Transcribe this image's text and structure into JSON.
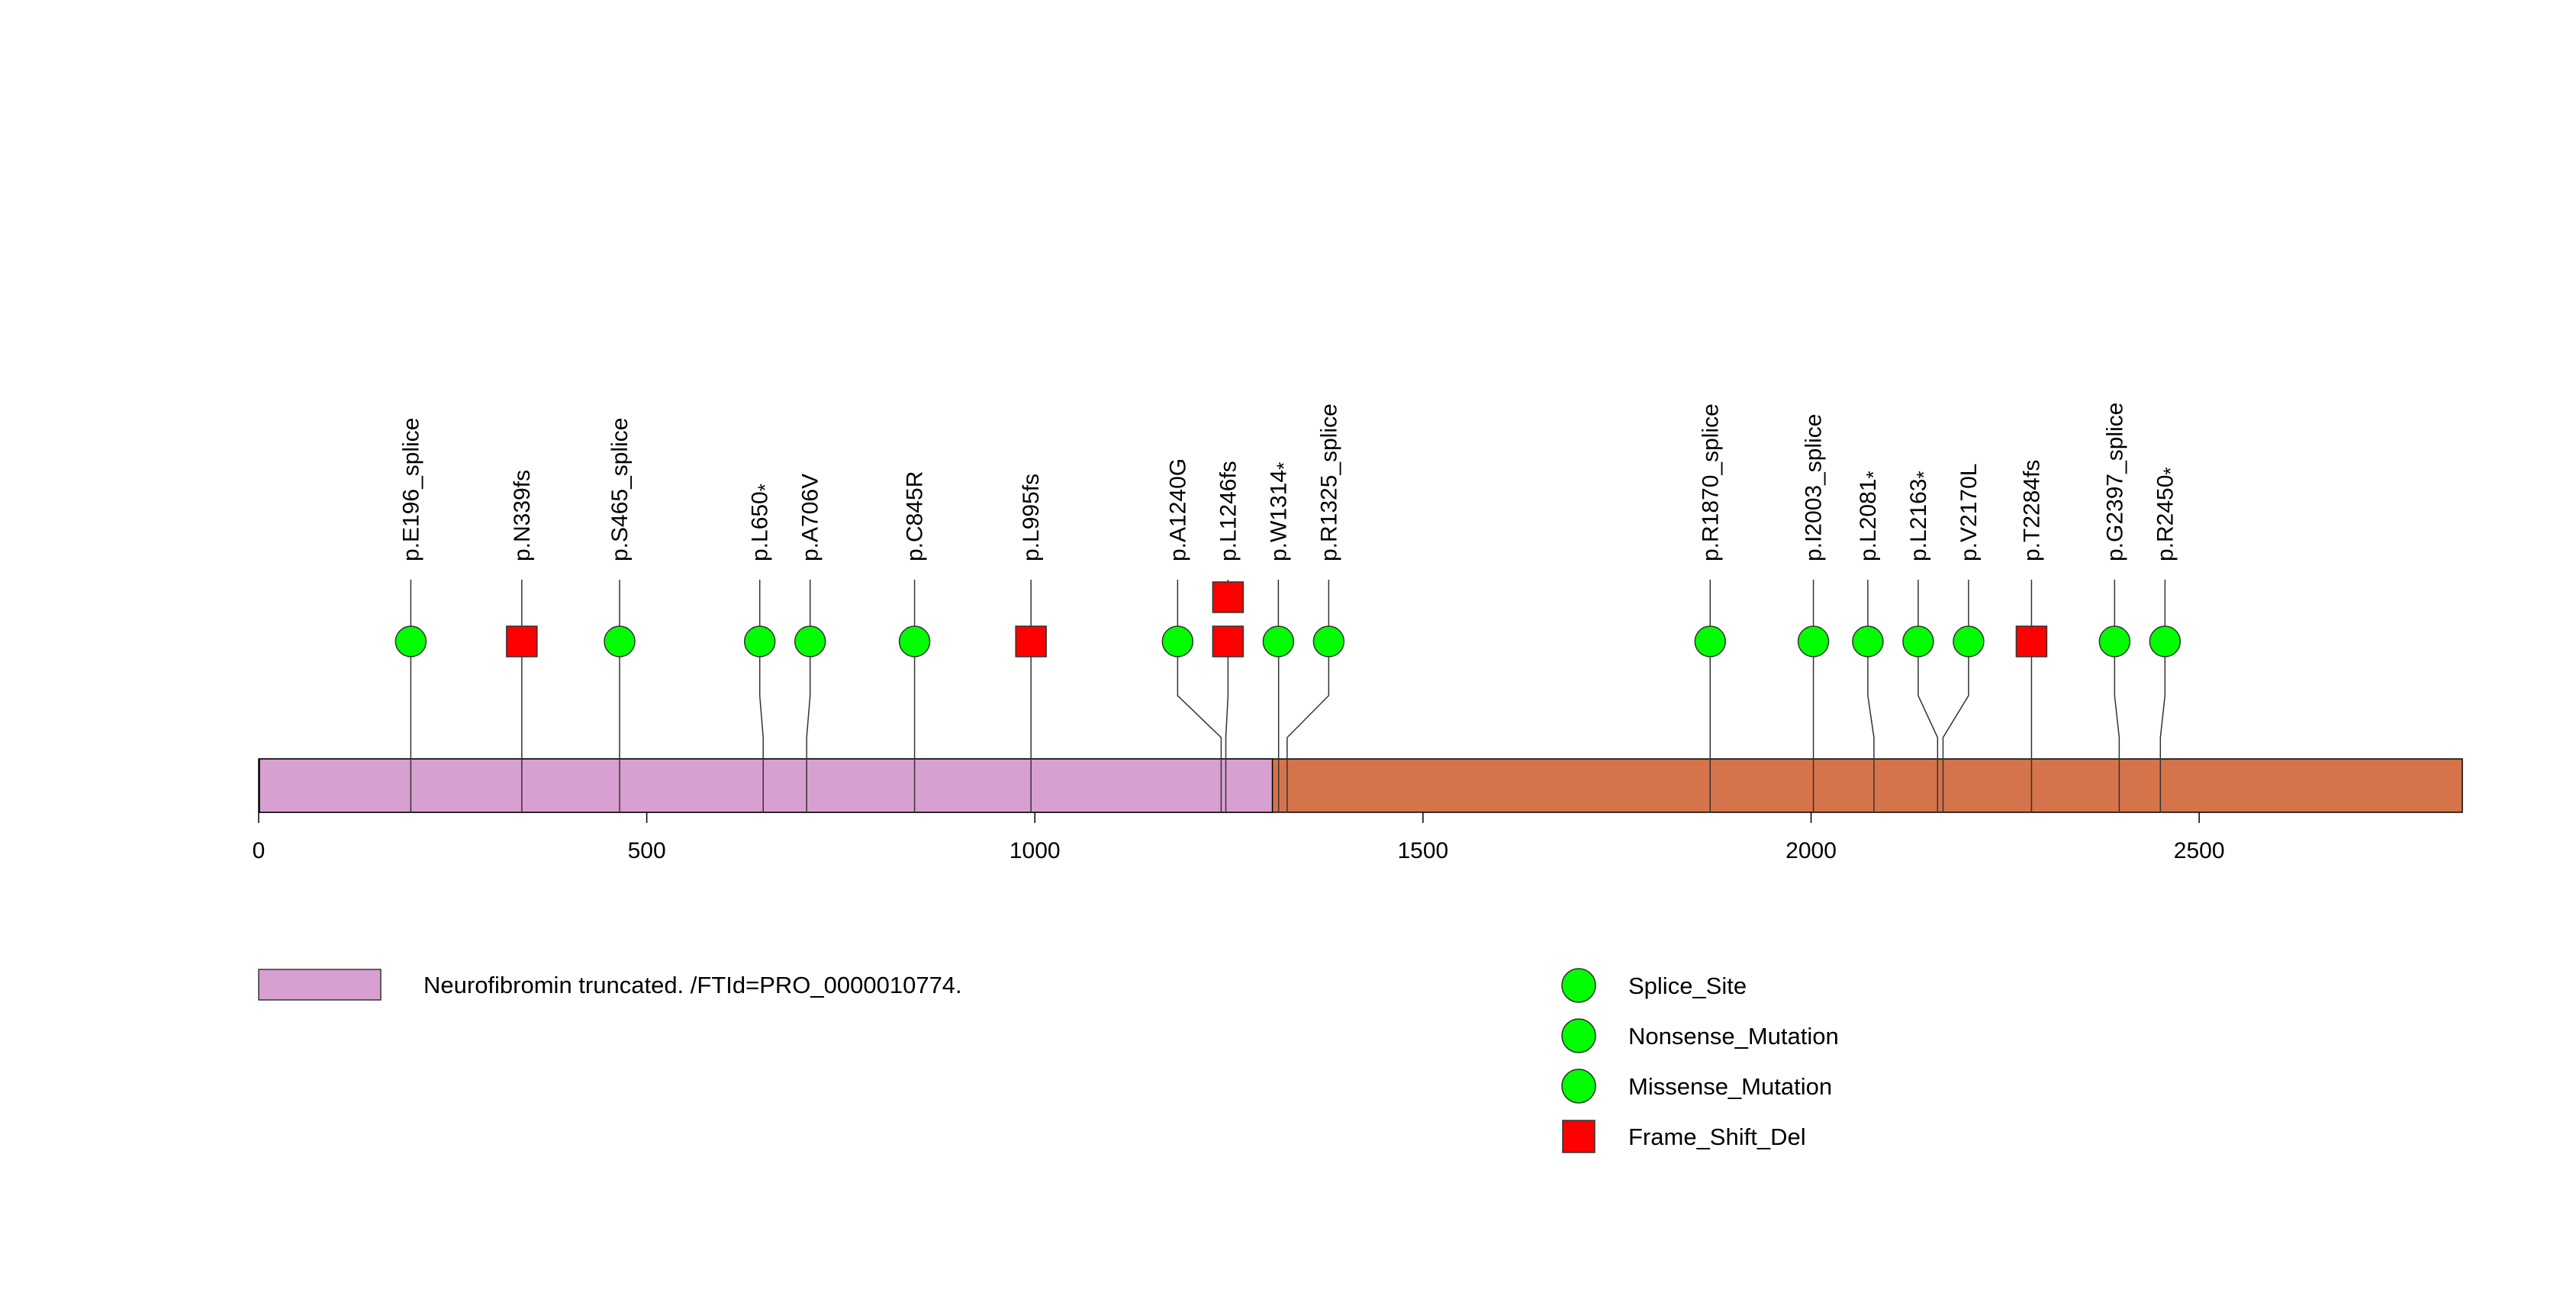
{
  "diagram": {
    "protein_length": 2839,
    "axis": {
      "min": 0,
      "max": 2839,
      "ticks": [
        0,
        500,
        1000,
        1500,
        2000,
        2500
      ],
      "tick_labels": [
        "0",
        "500",
        "1000",
        "1500",
        "2000",
        "2500"
      ]
    },
    "colors": {
      "backbone": "#D5744A",
      "region": "#D8A0D0",
      "splice": "#00FF00",
      "nonsense": "#00FF00",
      "missense": "#00FF00",
      "frameshift": "#FF0000",
      "stroke": "#000000"
    },
    "regions": [
      {
        "label": "Neurofibromin truncated. /FTId=PRO_0000010774.",
        "start": 1,
        "end": 1306
      }
    ],
    "mutations": [
      {
        "label": "p.E196_splice",
        "pos": 196,
        "type": "splice",
        "shape": "circle",
        "count": 1
      },
      {
        "label": "p.N339fs",
        "pos": 339,
        "type": "frameshift",
        "shape": "square",
        "count": 1
      },
      {
        "label": "p.S465_splice",
        "pos": 465,
        "type": "splice",
        "shape": "circle",
        "count": 1
      },
      {
        "label": "p.L650",
        "suffix": "*",
        "pos": 650,
        "type": "nonsense",
        "shape": "circle",
        "count": 1
      },
      {
        "label": "p.A706V",
        "pos": 706,
        "type": "missense",
        "shape": "circle",
        "count": 1
      },
      {
        "label": "p.C845R",
        "pos": 845,
        "type": "missense",
        "shape": "circle",
        "count": 1
      },
      {
        "label": "p.L995fs",
        "pos": 995,
        "type": "frameshift",
        "shape": "square",
        "count": 1
      },
      {
        "label": "p.A1240G",
        "pos": 1240,
        "type": "missense",
        "shape": "circle",
        "count": 1
      },
      {
        "label": "p.L1246fs",
        "pos": 1246,
        "type": "frameshift",
        "shape": "square",
        "count": 2
      },
      {
        "label": "p.W1314",
        "suffix": "*",
        "pos": 1314,
        "type": "nonsense",
        "shape": "circle",
        "count": 1
      },
      {
        "label": "p.R1325_splice",
        "pos": 1325,
        "type": "splice",
        "shape": "circle",
        "count": 1
      },
      {
        "label": "p.R1870_splice",
        "pos": 1870,
        "type": "splice",
        "shape": "circle",
        "count": 1
      },
      {
        "label": "p.I2003_splice",
        "pos": 2003,
        "type": "splice",
        "shape": "circle",
        "count": 1
      },
      {
        "label": "p.L2081",
        "suffix": "*",
        "pos": 2081,
        "type": "nonsense",
        "shape": "circle",
        "count": 1
      },
      {
        "label": "p.L2163",
        "suffix": "*",
        "pos": 2163,
        "type": "nonsense",
        "shape": "circle",
        "count": 1
      },
      {
        "label": "p.V2170L",
        "pos": 2170,
        "type": "missense",
        "shape": "circle",
        "count": 1
      },
      {
        "label": "p.T2284fs",
        "pos": 2284,
        "type": "frameshift",
        "shape": "square",
        "count": 1
      },
      {
        "label": "p.G2397_splice",
        "pos": 2397,
        "type": "splice",
        "shape": "circle",
        "count": 1
      },
      {
        "label": "p.R2450",
        "suffix": "*",
        "pos": 2450,
        "type": "nonsense",
        "shape": "circle",
        "count": 1
      }
    ],
    "legend": {
      "region_label": "Neurofibromin truncated. /FTId=PRO_0000010774.",
      "items": [
        {
          "label": "Splice_Site",
          "shape": "circle",
          "color": "#00FF00"
        },
        {
          "label": "Nonsense_Mutation",
          "shape": "circle",
          "color": "#00FF00"
        },
        {
          "label": "Missense_Mutation",
          "shape": "circle",
          "color": "#00FF00"
        },
        {
          "label": "Frame_Shift_Del",
          "shape": "square",
          "color": "#FF0000"
        }
      ]
    }
  }
}
